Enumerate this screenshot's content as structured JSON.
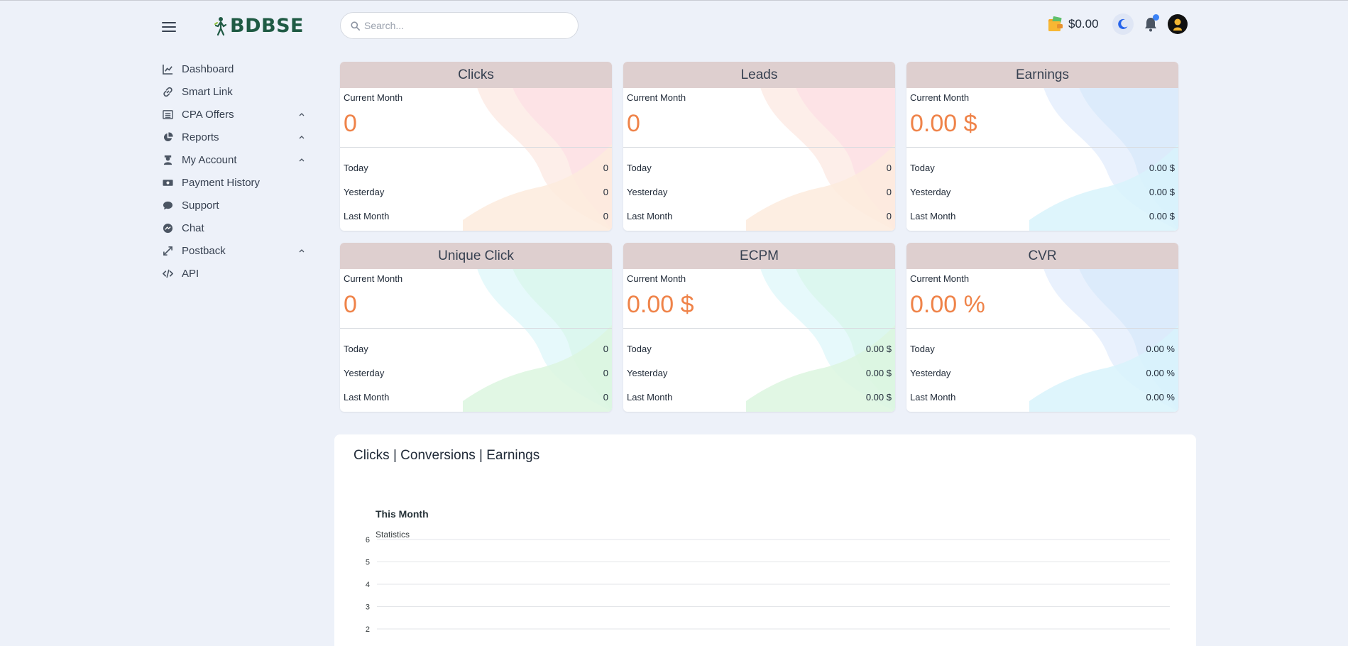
{
  "header": {
    "logo_text": "BDBSE",
    "search_placeholder": "Search...",
    "balance": "$0.00"
  },
  "colors": {
    "accent": "#ef8349",
    "card_header": "#decfcf",
    "logo": "#1f5a44",
    "page_bg": "#edf1f9"
  },
  "sidebar": {
    "items": [
      {
        "label": "Dashboard",
        "icon": "chart-line-icon",
        "expandable": false
      },
      {
        "label": "Smart Link",
        "icon": "link-icon",
        "expandable": false
      },
      {
        "label": "CPA Offers",
        "icon": "list-icon",
        "expandable": true
      },
      {
        "label": "Reports",
        "icon": "pie-chart-icon",
        "expandable": true
      },
      {
        "label": "My Account",
        "icon": "user-tie-icon",
        "expandable": true
      },
      {
        "label": "Payment History",
        "icon": "money-bill-icon",
        "expandable": false
      },
      {
        "label": "Support",
        "icon": "comment-icon",
        "expandable": false
      },
      {
        "label": "Chat",
        "icon": "messenger-icon",
        "expandable": false
      },
      {
        "label": "Postback",
        "icon": "expand-arrows-icon",
        "expandable": true
      },
      {
        "label": "API",
        "icon": "code-icon",
        "expandable": false
      }
    ]
  },
  "cards": [
    {
      "title": "Clicks",
      "current_label": "Current Month",
      "current": "0",
      "theme": "pink",
      "rows": [
        {
          "label": "Today",
          "value": "0"
        },
        {
          "label": "Yesterday",
          "value": "0"
        },
        {
          "label": "Last Month",
          "value": "0"
        }
      ]
    },
    {
      "title": "Leads",
      "current_label": "Current Month",
      "current": "0",
      "theme": "pink",
      "rows": [
        {
          "label": "Today",
          "value": "0"
        },
        {
          "label": "Yesterday",
          "value": "0"
        },
        {
          "label": "Last Month",
          "value": "0"
        }
      ]
    },
    {
      "title": "Earnings",
      "current_label": "Current Month",
      "current": "0.00 $",
      "theme": "blue",
      "rows": [
        {
          "label": "Today",
          "value": "0.00 $"
        },
        {
          "label": "Yesterday",
          "value": "0.00 $"
        },
        {
          "label": "Last Month",
          "value": "0.00 $"
        }
      ]
    },
    {
      "title": "Unique Click",
      "current_label": "Current Month",
      "current": "0",
      "theme": "green",
      "rows": [
        {
          "label": "Today",
          "value": "0"
        },
        {
          "label": "Yesterday",
          "value": "0"
        },
        {
          "label": "Last Month",
          "value": "0"
        }
      ]
    },
    {
      "title": "ECPM",
      "current_label": "Current Month",
      "current": "0.00 $",
      "theme": "green",
      "rows": [
        {
          "label": "Today",
          "value": "0.00 $"
        },
        {
          "label": "Yesterday",
          "value": "0.00 $"
        },
        {
          "label": "Last Month",
          "value": "0.00 $"
        }
      ]
    },
    {
      "title": "CVR",
      "current_label": "Current Month",
      "current": "0.00 %",
      "theme": "blue",
      "rows": [
        {
          "label": "Today",
          "value": "0.00 %"
        },
        {
          "label": "Yesterday",
          "value": "0.00 %"
        },
        {
          "label": "Last Month",
          "value": "0.00 %"
        }
      ]
    }
  ],
  "panel": {
    "title": "Clicks | Conversions | Earnings"
  },
  "chart_data": {
    "type": "line",
    "title": "This Month",
    "subtitle": "Statistics",
    "y_ticks": [
      6,
      5,
      4,
      3,
      2
    ],
    "series": [],
    "grid": true
  }
}
